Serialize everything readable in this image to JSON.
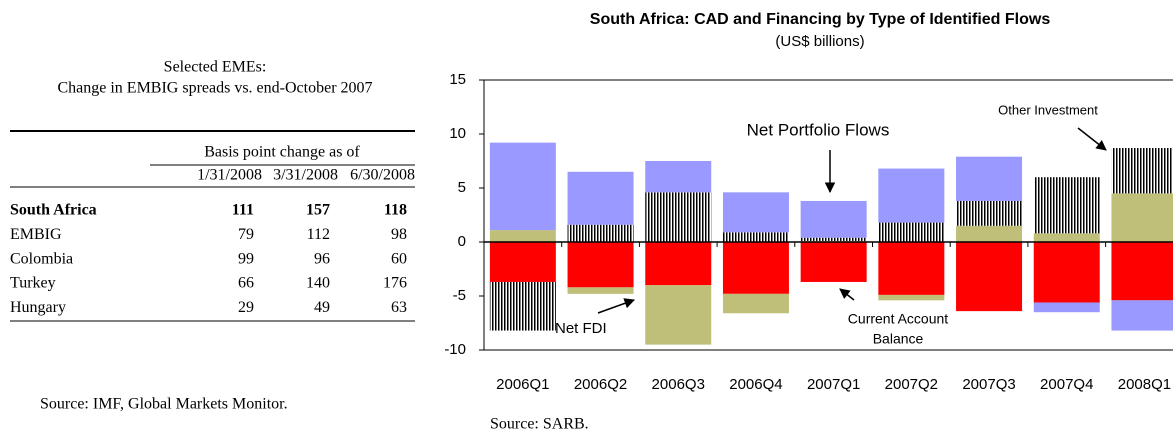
{
  "table": {
    "title": "Selected EMEs:",
    "subtitle": "Change in EMBIG spreads vs. end-October 2007",
    "group_header": "Basis point change as of",
    "columns": [
      "1/31/2008",
      "3/31/2008",
      "6/30/2008"
    ],
    "rows": [
      {
        "name": "South Africa",
        "values": [
          111,
          157,
          118
        ]
      },
      {
        "name": "EMBIG",
        "values": [
          79,
          112,
          98
        ]
      },
      {
        "name": "Colombia",
        "values": [
          99,
          96,
          60
        ]
      },
      {
        "name": "Turkey",
        "values": [
          66,
          140,
          176
        ]
      },
      {
        "name": "Hungary",
        "values": [
          29,
          49,
          63
        ]
      }
    ],
    "source": "Source: IMF, Global Markets Monitor."
  },
  "chart_data": {
    "type": "stacked_bar",
    "title": "South Africa: CAD and Financing by Type of Identified Flows",
    "subtitle": "(US$ billions)",
    "categories": [
      "2006Q1",
      "2006Q2",
      "2006Q3",
      "2006Q4",
      "2007Q1",
      "2007Q2",
      "2007Q3",
      "2007Q4",
      "2008Q1"
    ],
    "series": [
      {
        "name": "Current Account Balance",
        "color": "#ff0000",
        "values": [
          -3.7,
          -4.2,
          -4.0,
          -4.8,
          -3.7,
          -4.9,
          -6.4,
          -5.6,
          -5.4
        ]
      },
      {
        "name": "Net FDI",
        "color": "#bfbf7a",
        "values": [
          1.1,
          -0.6,
          -5.5,
          -1.8,
          0.1,
          -0.5,
          1.5,
          0.8,
          4.5
        ]
      },
      {
        "name": "Other Investment",
        "color": "#000000",
        "pattern": "vertical-lines",
        "values": [
          -4.5,
          1.6,
          4.6,
          0.9,
          0.3,
          1.8,
          2.3,
          5.2,
          4.2
        ]
      },
      {
        "name": "Net Portfolio Flows",
        "color": "#9999ff",
        "values": [
          8.1,
          4.9,
          2.9,
          3.7,
          3.4,
          5.0,
          4.1,
          -0.9,
          -2.8
        ]
      }
    ],
    "annotations": [
      {
        "lines": [
          "Net Portfolio Flows"
        ]
      },
      {
        "lines": [
          "Other Investment"
        ]
      },
      {
        "lines": [
          "Net FDI"
        ]
      },
      {
        "lines": [
          "Current Account",
          "Balance"
        ]
      }
    ],
    "ylim": [
      -10,
      15
    ],
    "yticks": [
      -10,
      -5,
      0,
      5,
      10,
      15
    ],
    "source": "Source: SARB."
  }
}
